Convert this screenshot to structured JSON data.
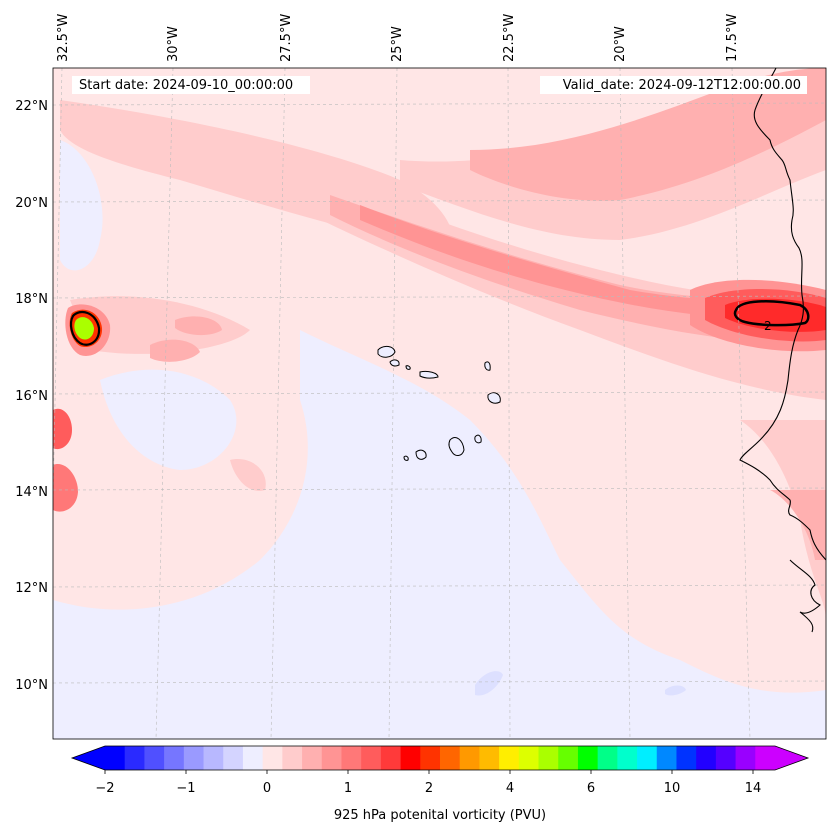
{
  "header": {
    "start_date": "Start date: 2024-09-10_00:00:00",
    "valid_date": "Valid_date: 2024-09-12T12:00:00.00"
  },
  "axes": {
    "lon_labels": [
      "32.5°W",
      "30°W",
      "27.5°W",
      "25°W",
      "22.5°W",
      "20°W",
      "17.5°W"
    ],
    "lat_labels": [
      "22°N",
      "20°N",
      "18°N",
      "16°N",
      "14°N",
      "12°N",
      "10°N"
    ]
  },
  "contour_label": "2",
  "colorbar": {
    "title": "925 hPa potenital vorticity (PVU)",
    "tick_labels": [
      "−2",
      "−1",
      "0",
      "1",
      "2",
      "4",
      "6",
      "10",
      "14"
    ],
    "colors": [
      "#0000ff",
      "#2a2aff",
      "#5050ff",
      "#7676ff",
      "#9a9aff",
      "#b8b8ff",
      "#d4d4ff",
      "#eeeeff",
      "#ffe6e6",
      "#ffcccc",
      "#ffb0b0",
      "#ff9494",
      "#ff7878",
      "#ff5c5c",
      "#ff3a3a",
      "#ff0000",
      "#ff3300",
      "#ff6600",
      "#ff9900",
      "#ffbb00",
      "#ffee00",
      "#ddff00",
      "#aaff00",
      "#66ff00",
      "#00ff00",
      "#00ff88",
      "#00ffcc",
      "#00eeff",
      "#0088ff",
      "#0033ff",
      "#2200ff",
      "#5500ff",
      "#9900ff",
      "#cc00ff"
    ],
    "extend_min_color": "#0000ff",
    "extend_max_color": "#cc00ff"
  },
  "palette": {
    "background_pink": "#ffe6e6",
    "light_blue": "#eeeeff",
    "band_pink": "#ffb0b0",
    "band_strong": "#ff7878",
    "core_red": "#ff2a2a"
  }
}
